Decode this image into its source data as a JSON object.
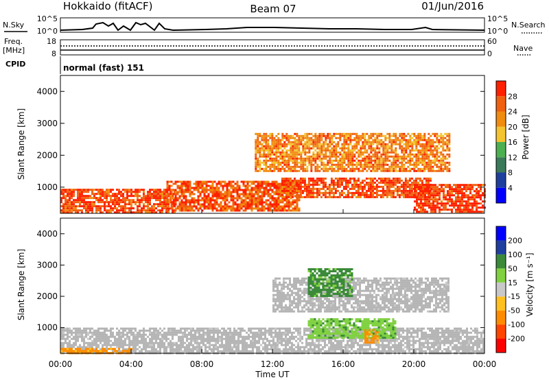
{
  "header": {
    "station": "Hokkaido (fitACF)",
    "beam": "Beam 07",
    "date": "01/Jun/2016"
  },
  "top_panels": {
    "nsky_label": "N.Sky",
    "nsearch_label": "N.Search",
    "nsky_ticks": [
      "10^5",
      "10^0"
    ],
    "nsearch_ticks": [
      "10^5",
      "10^0"
    ],
    "freq_label_1": "Freq.",
    "freq_label_2": "[MHz]",
    "freq_ticks": [
      "18",
      "8"
    ],
    "nave_label": "Nave",
    "nave_ticks": [
      "60",
      "0"
    ],
    "cpid_label": "CPID",
    "cpid_value": "normal (fast) 151"
  },
  "colors": {
    "power_scale": [
      "#0000ff",
      "#1f3f9f",
      "#3a7a5a",
      "#4caf50",
      "#f4c430",
      "#f08c10",
      "#f06010",
      "#ff2000"
    ],
    "velocity_scale": [
      "#ff0000",
      "#ff4500",
      "#ff8c00",
      "#ffc020",
      "#c8c8c8",
      "#7fd13f",
      "#3a8a3a",
      "#1f3fa0",
      "#0000ff"
    ],
    "ground_scatter": "#b4b4b4"
  },
  "chart_data": [
    {
      "type": "heatmap",
      "title": "Power",
      "xlabel": "Time UT",
      "ylabel": "Slant Range [km]",
      "x_ticks": [
        "00:00",
        "04:00",
        "08:00",
        "12:00",
        "16:00",
        "20:00",
        "00:00"
      ],
      "y_ticks": [
        "1000",
        "2000",
        "3000",
        "4000"
      ],
      "ylim": [
        180,
        4500
      ],
      "colorbar": {
        "label": "Power [dB]",
        "ticks": [
          "28",
          "24",
          "20",
          "16",
          "12",
          "8",
          "4"
        ],
        "range": [
          0,
          30
        ]
      },
      "approx_echo_regions": [
        {
          "t_start": 0.0,
          "t_end": 6.5,
          "range_min": 200,
          "range_max": 950,
          "power_db": 26
        },
        {
          "t_start": 6.0,
          "t_end": 13.5,
          "range_min": 250,
          "range_max": 1200,
          "power_db": 25
        },
        {
          "t_start": 11.0,
          "t_end": 22.0,
          "range_min": 1500,
          "range_max": 2700,
          "power_db": 22
        },
        {
          "t_start": 12.5,
          "t_end": 21.0,
          "range_min": 700,
          "range_max": 1300,
          "power_db": 26
        },
        {
          "t_start": 20.0,
          "t_end": 24.0,
          "range_min": 200,
          "range_max": 1100,
          "power_db": 27
        }
      ]
    },
    {
      "type": "heatmap",
      "title": "Velocity",
      "xlabel": "Time UT",
      "ylabel": "Slant Range [km]",
      "x_ticks": [
        "00:00",
        "04:00",
        "08:00",
        "12:00",
        "16:00",
        "20:00",
        "00:00"
      ],
      "y_ticks": [
        "1000",
        "2000",
        "3000",
        "4000"
      ],
      "ylim": [
        180,
        4500
      ],
      "colorbar": {
        "label": "Velocity [m s⁻¹]",
        "ticks": [
          "200",
          "100",
          "50",
          "15",
          "-15",
          "-50",
          "-100",
          "-200"
        ],
        "range": [
          -250,
          250
        ]
      },
      "approx_echo_regions": [
        {
          "t_start": 0.0,
          "t_end": 24.0,
          "range_min": 200,
          "range_max": 1000,
          "velocity": 0,
          "ground_scatter": true
        },
        {
          "t_start": 0.0,
          "t_end": 4.0,
          "range_min": 180,
          "range_max": 350,
          "velocity": -60
        },
        {
          "t_start": 12.0,
          "t_end": 22.0,
          "range_min": 1500,
          "range_max": 2600,
          "velocity": 0,
          "ground_scatter": true
        },
        {
          "t_start": 14.0,
          "t_end": 16.5,
          "range_min": 2000,
          "range_max": 2900,
          "velocity": 60
        },
        {
          "t_start": 14.0,
          "t_end": 19.0,
          "range_min": 650,
          "range_max": 1300,
          "velocity": 40
        },
        {
          "t_start": 17.2,
          "t_end": 18.0,
          "range_min": 500,
          "range_max": 950,
          "velocity": -60
        }
      ]
    }
  ]
}
